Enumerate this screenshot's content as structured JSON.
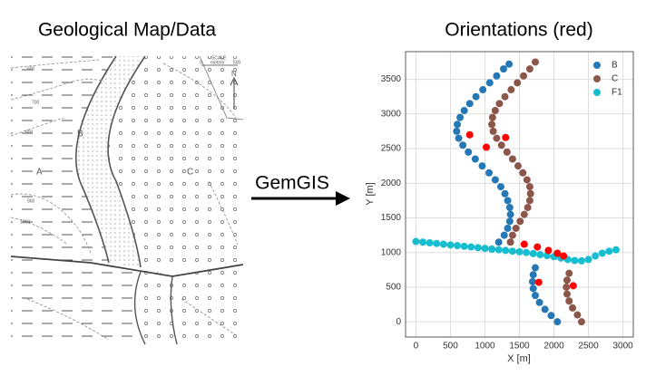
{
  "left_title": "Geological Map/Data",
  "arrow_label": "GemGIS",
  "map": {
    "labels": [
      "A",
      "B",
      "C",
      "N",
      "SCALE",
      "metres",
      "0",
      "500",
      "600",
      "700",
      "800",
      "900",
      "1000"
    ]
  },
  "chart_data": {
    "type": "scatter",
    "title": "Orientations (red)",
    "xlabel": "X [m]",
    "ylabel": "Y [m]",
    "xlim": [
      -150,
      3150
    ],
    "ylim": [
      -220,
      3900
    ],
    "xticks": [
      0,
      500,
      1000,
      1500,
      2000,
      2500,
      3000
    ],
    "yticks": [
      0,
      500,
      1000,
      1500,
      2000,
      2500,
      3000,
      3500
    ],
    "grid": true,
    "legend": "upper-right",
    "series": [
      {
        "name": "B",
        "color": "#2677b5",
        "x": [
          2050,
          1960,
          1870,
          1790,
          1730,
          1700,
          1690,
          1700,
          1730,
          1100,
          1200,
          1280,
          1330,
          1360,
          1370,
          1360,
          1330,
          1290,
          1230,
          1150,
          1060,
          960,
          860,
          760,
          680,
          620,
          590,
          600,
          640,
          700,
          780,
          870,
          970,
          1070,
          1170,
          1270,
          1350
        ],
        "values": [
          0,
          90,
          180,
          280,
          380,
          480,
          580,
          680,
          780,
          1050,
          1150,
          1250,
          1350,
          1450,
          1550,
          1650,
          1750,
          1850,
          1950,
          2050,
          2150,
          2250,
          2350,
          2450,
          2550,
          2650,
          2750,
          2850,
          2950,
          3050,
          3150,
          3250,
          3350,
          3450,
          3550,
          3650,
          3720
        ]
      },
      {
        "name": "C",
        "color": "#8c564b",
        "x": [
          2400,
          2340,
          2270,
          2220,
          2190,
          2180,
          2190,
          2220,
          1370,
          1400,
          1450,
          1510,
          1570,
          1620,
          1650,
          1660,
          1650,
          1610,
          1550,
          1480,
          1400,
          1320,
          1240,
          1170,
          1120,
          1100,
          1110,
          1150,
          1210,
          1290,
          1380,
          1470,
          1560,
          1650,
          1730
        ],
        "values": [
          0,
          100,
          200,
          300,
          400,
          500,
          600,
          700,
          1150,
          1250,
          1350,
          1450,
          1550,
          1650,
          1750,
          1850,
          1950,
          2050,
          2150,
          2250,
          2350,
          2450,
          2550,
          2650,
          2750,
          2850,
          2950,
          3050,
          3150,
          3250,
          3350,
          3450,
          3550,
          3650,
          3750
        ]
      },
      {
        "name": "F1",
        "color": "#17becf",
        "x": [
          0,
          100,
          200,
          300,
          400,
          500,
          600,
          700,
          800,
          900,
          1000,
          1100,
          1200,
          1300,
          1400,
          1500,
          1600,
          1700,
          1800,
          1900,
          2000,
          2100,
          2200,
          2300,
          2400,
          2500,
          2600,
          2700,
          2800,
          2900
        ],
        "values": [
          1160,
          1150,
          1140,
          1130,
          1120,
          1110,
          1100,
          1090,
          1080,
          1070,
          1060,
          1050,
          1040,
          1030,
          1020,
          1010,
          1000,
          985,
          970,
          955,
          940,
          920,
          900,
          885,
          880,
          900,
          950,
          990,
          1020,
          1040
        ]
      },
      {
        "color": "#ff0000",
        "x": [
          780,
          1020,
          1300,
          1570,
          1760,
          1920,
          2050,
          2140,
          1780,
          2280
        ],
        "values": [
          2700,
          2520,
          2660,
          1120,
          1080,
          1030,
          990,
          950,
          570,
          520
        ]
      }
    ]
  }
}
